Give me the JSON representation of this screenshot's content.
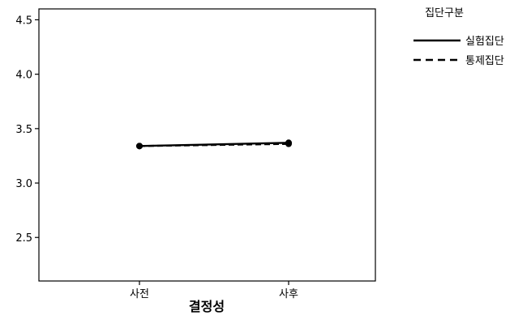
{
  "chart_data": {
    "type": "line",
    "categories": [
      "사전",
      "사후"
    ],
    "series": [
      {
        "name": "실험집단",
        "values": [
          3.34,
          3.37
        ],
        "line_style": "solid"
      },
      {
        "name": "통제집단",
        "values": [
          3.34,
          3.36
        ],
        "line_style": "dashed"
      }
    ],
    "xlabel": "결정성",
    "ylabel": "",
    "ylim": [
      2.1,
      4.6
    ],
    "yticks": [
      2.5,
      3.0,
      3.5,
      4.0,
      4.5
    ],
    "ytick_labels": [
      "2.5",
      "3.0",
      "3.5",
      "4.0",
      "4.5"
    ],
    "legend_title": "집단구분",
    "legend_position": "top-right",
    "grid": false,
    "line_color": "#000000"
  }
}
